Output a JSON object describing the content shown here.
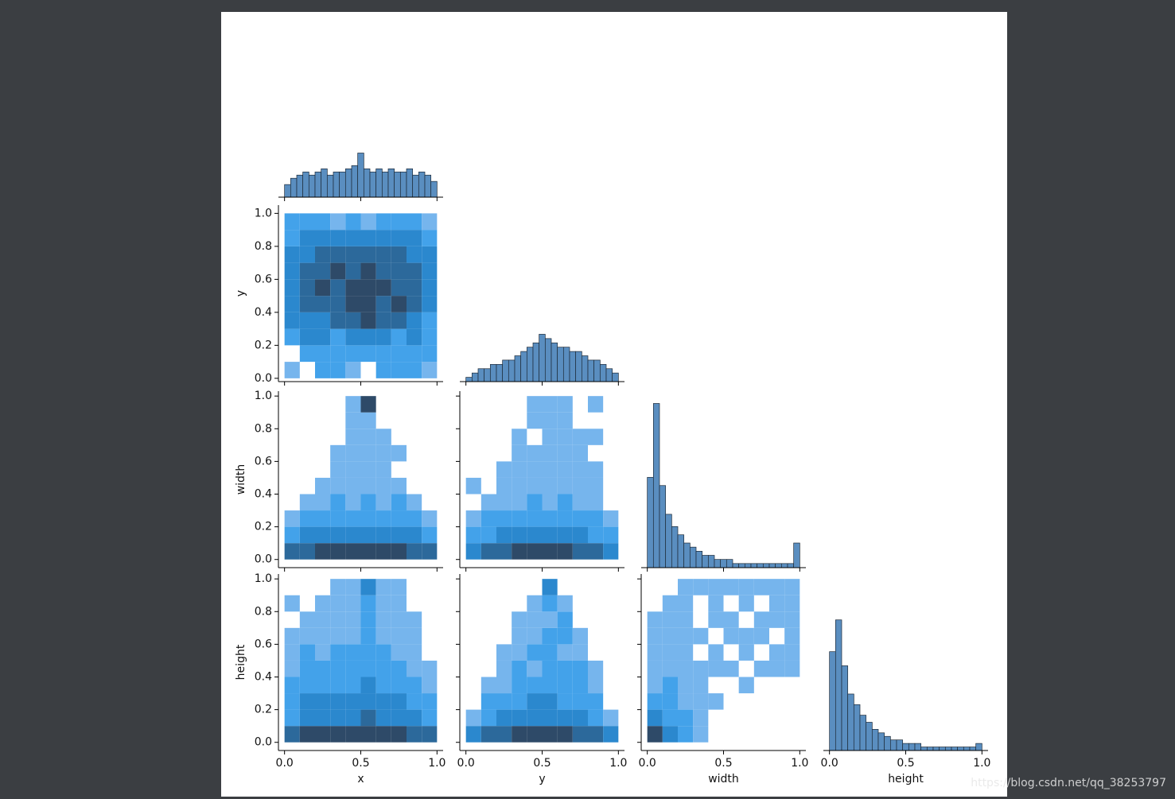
{
  "watermark": "https://blog.csdn.net/qq_38253797",
  "chart_data": [
    {
      "type": "hist",
      "xlim": [
        -0.04,
        1.04
      ],
      "ylim": [
        0,
        56
      ],
      "xticks": [
        {
          "value": 0,
          "label": "0.0"
        },
        0.5,
        {
          "value": 1,
          "label": "1.0"
        }
      ],
      "xtick_labels": false,
      "color": "#5a8ec0",
      "bins": [
        0,
        0.04,
        0.08,
        0.12,
        0.16,
        0.2,
        0.24,
        0.28,
        0.32,
        0.36,
        0.4,
        0.44,
        0.48,
        0.52,
        0.56,
        0.6,
        0.64,
        0.68,
        0.72,
        0.76,
        0.8,
        0.84,
        0.88,
        0.92,
        0.96,
        1
      ],
      "counts": [
        4,
        6,
        7,
        8,
        7,
        8,
        9,
        7,
        8,
        8,
        9,
        10,
        14,
        9,
        8,
        9,
        8,
        9,
        8,
        8,
        9,
        7,
        8,
        7,
        5
      ]
    },
    {
      "type": "hist2d",
      "y_label": "y",
      "xlim": [
        -0.04,
        1.04
      ],
      "ylim": [
        -0.02,
        1.05
      ],
      "xticks": [
        {
          "value": 0,
          "label": "0.0"
        },
        0.5,
        {
          "value": 1,
          "label": "1.0"
        }
      ],
      "yticks": [
        {
          "value": 0,
          "label": "0.0"
        },
        0.2,
        0.4,
        0.6,
        0.8,
        {
          "value": 1,
          "label": "1.0"
        }
      ],
      "xtick_labels": false,
      "ytick_labels": true,
      "colors": [
        "#a8c8f0",
        "#2a98e8",
        "#2e4a68"
      ],
      "bins_x": [
        0,
        0.1,
        0.2,
        0.3,
        0.4,
        0.5,
        0.6,
        0.7,
        0.8,
        0.9,
        1
      ],
      "bins_y": [
        0,
        0.1,
        0.2,
        0.3,
        0.4,
        0.5,
        0.6,
        0.7,
        0.8,
        0.9,
        1
      ],
      "counts": [
        [
          1,
          0,
          2,
          2,
          1,
          0,
          2,
          2,
          2,
          1
        ],
        [
          0,
          2,
          2,
          2,
          2,
          2,
          2,
          2,
          2,
          2
        ],
        [
          2,
          3,
          3,
          2,
          3,
          3,
          3,
          2,
          3,
          2
        ],
        [
          3,
          3,
          3,
          4,
          4,
          5,
          4,
          4,
          3,
          2
        ],
        [
          3,
          4,
          4,
          4,
          5,
          5,
          4,
          5,
          4,
          3
        ],
        [
          3,
          4,
          5,
          4,
          5,
          5,
          5,
          4,
          4,
          3
        ],
        [
          3,
          4,
          4,
          5,
          4,
          5,
          4,
          4,
          4,
          3
        ],
        [
          3,
          3,
          4,
          4,
          4,
          4,
          4,
          4,
          3,
          3
        ],
        [
          2,
          3,
          3,
          3,
          3,
          3,
          3,
          3,
          3,
          2
        ],
        [
          2,
          2,
          2,
          1,
          2,
          1,
          2,
          2,
          2,
          1
        ]
      ]
    },
    {
      "type": "hist",
      "xlim": [
        -0.04,
        1.04
      ],
      "ylim": [
        0,
        41
      ],
      "xticks": [
        {
          "value": 0,
          "label": "0.0"
        },
        0.5,
        {
          "value": 1,
          "label": "1.0"
        }
      ],
      "xtick_labels": false,
      "color": "#5a8ec0",
      "bins": [
        0,
        0.04,
        0.08,
        0.12,
        0.16,
        0.2,
        0.24,
        0.28,
        0.32,
        0.36,
        0.4,
        0.44,
        0.48,
        0.52,
        0.56,
        0.6,
        0.64,
        0.68,
        0.72,
        0.76,
        0.8,
        0.84,
        0.88,
        0.92,
        0.96,
        1
      ],
      "counts": [
        1,
        2,
        3,
        3,
        4,
        4,
        5,
        5,
        6,
        7,
        8,
        9,
        11,
        10,
        9,
        8,
        8,
        7,
        7,
        6,
        5,
        5,
        4,
        3,
        2
      ]
    },
    {
      "type": "hist2d",
      "y_label": "width",
      "xlim": [
        -0.04,
        1.04
      ],
      "ylim": [
        -0.05,
        1.03
      ],
      "xticks": [
        {
          "value": 0,
          "label": "0.0"
        },
        0.5,
        {
          "value": 1,
          "label": "1.0"
        }
      ],
      "yticks": [
        {
          "value": 0,
          "label": "0.0"
        },
        0.2,
        0.4,
        0.6,
        0.8,
        {
          "value": 1,
          "label": "1.0"
        }
      ],
      "xtick_labels": false,
      "ytick_labels": true,
      "colors": [
        "#a8c8f0",
        "#2a98e8",
        "#2e4a68"
      ],
      "bins_x": [
        0,
        0.1,
        0.2,
        0.3,
        0.4,
        0.5,
        0.6,
        0.7,
        0.8,
        0.9,
        1
      ],
      "bins_y": [
        0,
        0.1,
        0.2,
        0.3,
        0.4,
        0.5,
        0.6,
        0.7,
        0.8,
        0.9,
        1
      ],
      "counts": [
        [
          4,
          4,
          5,
          5,
          5,
          5,
          5,
          5,
          4,
          4
        ],
        [
          2,
          3,
          3,
          3,
          3,
          3,
          3,
          3,
          3,
          2
        ],
        [
          1,
          2,
          2,
          2,
          2,
          2,
          2,
          2,
          2,
          1
        ],
        [
          0,
          1,
          1,
          2,
          1,
          2,
          1,
          2,
          1,
          0
        ],
        [
          0,
          0,
          1,
          1,
          1,
          1,
          1,
          1,
          0,
          0
        ],
        [
          0,
          0,
          0,
          1,
          1,
          1,
          1,
          0,
          0,
          0
        ],
        [
          0,
          0,
          0,
          1,
          1,
          1,
          1,
          1,
          0,
          0
        ],
        [
          0,
          0,
          0,
          0,
          1,
          1,
          1,
          0,
          0,
          0
        ],
        [
          0,
          0,
          0,
          0,
          1,
          1,
          0,
          0,
          0,
          0
        ],
        [
          0,
          0,
          0,
          0,
          1,
          5,
          0,
          0,
          0,
          0
        ]
      ]
    },
    {
      "type": "hist2d",
      "xlim": [
        -0.04,
        1.04
      ],
      "ylim": [
        -0.05,
        1.03
      ],
      "xticks": [
        {
          "value": 0,
          "label": "0.0"
        },
        0.5,
        {
          "value": 1,
          "label": "1.0"
        }
      ],
      "yticks": [
        {
          "value": 0,
          "label": "0.0"
        },
        0.2,
        0.4,
        0.6,
        0.8,
        {
          "value": 1,
          "label": "1.0"
        }
      ],
      "xtick_labels": false,
      "ytick_labels": false,
      "colors": [
        "#a8c8f0",
        "#2a98e8",
        "#2e4a68"
      ],
      "bins_x": [
        0,
        0.1,
        0.2,
        0.3,
        0.4,
        0.5,
        0.6,
        0.7,
        0.8,
        0.9,
        1
      ],
      "bins_y": [
        0,
        0.1,
        0.2,
        0.3,
        0.4,
        0.5,
        0.6,
        0.7,
        0.8,
        0.9,
        1
      ],
      "counts": [
        [
          3,
          4,
          4,
          5,
          5,
          5,
          5,
          4,
          4,
          3
        ],
        [
          2,
          2,
          3,
          3,
          3,
          3,
          3,
          3,
          2,
          2
        ],
        [
          1,
          2,
          2,
          2,
          2,
          2,
          2,
          2,
          2,
          1
        ],
        [
          0,
          1,
          1,
          1,
          2,
          1,
          2,
          1,
          1,
          0
        ],
        [
          1,
          0,
          1,
          1,
          1,
          1,
          1,
          1,
          1,
          0
        ],
        [
          0,
          0,
          1,
          1,
          1,
          1,
          1,
          1,
          1,
          0
        ],
        [
          0,
          0,
          0,
          1,
          1,
          1,
          1,
          1,
          0,
          0
        ],
        [
          0,
          0,
          0,
          1,
          0,
          1,
          1,
          1,
          1,
          0
        ],
        [
          0,
          0,
          0,
          0,
          1,
          1,
          1,
          0,
          0,
          0
        ],
        [
          0,
          0,
          0,
          0,
          1,
          1,
          1,
          0,
          1,
          0
        ]
      ]
    },
    {
      "type": "hist",
      "xlim": [
        -0.04,
        1.04
      ],
      "ylim": [
        0,
        43
      ],
      "xticks": [
        {
          "value": 0,
          "label": "0.0"
        },
        0.5,
        {
          "value": 1,
          "label": "1.0"
        }
      ],
      "xtick_labels": false,
      "color": "#5a8ec0",
      "bins": [
        0,
        0.04,
        0.08,
        0.12,
        0.16,
        0.2,
        0.24,
        0.28,
        0.32,
        0.36,
        0.4,
        0.44,
        0.48,
        0.52,
        0.56,
        0.6,
        0.64,
        0.68,
        0.72,
        0.76,
        0.8,
        0.84,
        0.88,
        0.92,
        0.96,
        1
      ],
      "counts": [
        22,
        40,
        20,
        13,
        10,
        8,
        6,
        5,
        4,
        3,
        3,
        2,
        2,
        2,
        1,
        1,
        1,
        1,
        1,
        1,
        1,
        1,
        1,
        1,
        6
      ]
    },
    {
      "type": "hist2d",
      "y_label": "height",
      "x_label": "x",
      "xlim": [
        -0.04,
        1.04
      ],
      "ylim": [
        -0.05,
        1.03
      ],
      "xticks": [
        {
          "value": 0,
          "label": "0.0"
        },
        0.5,
        {
          "value": 1,
          "label": "1.0"
        }
      ],
      "yticks": [
        {
          "value": 0,
          "label": "0.0"
        },
        0.2,
        0.4,
        0.6,
        0.8,
        {
          "value": 1,
          "label": "1.0"
        }
      ],
      "xtick_labels": true,
      "ytick_labels": true,
      "colors": [
        "#a8c8f0",
        "#2a98e8",
        "#2e4a68"
      ],
      "bins_x": [
        0,
        0.1,
        0.2,
        0.3,
        0.4,
        0.5,
        0.6,
        0.7,
        0.8,
        0.9,
        1
      ],
      "bins_y": [
        0,
        0.1,
        0.2,
        0.3,
        0.4,
        0.5,
        0.6,
        0.7,
        0.8,
        0.9,
        1
      ],
      "counts": [
        [
          4,
          5,
          5,
          5,
          5,
          5,
          5,
          5,
          4,
          4
        ],
        [
          2,
          3,
          3,
          3,
          3,
          4,
          3,
          3,
          3,
          2
        ],
        [
          2,
          3,
          3,
          3,
          3,
          3,
          3,
          3,
          2,
          2
        ],
        [
          2,
          2,
          2,
          2,
          2,
          3,
          2,
          2,
          2,
          1
        ],
        [
          1,
          2,
          2,
          2,
          2,
          2,
          2,
          2,
          1,
          1
        ],
        [
          1,
          2,
          1,
          2,
          2,
          2,
          2,
          1,
          1,
          0
        ],
        [
          1,
          1,
          1,
          1,
          1,
          2,
          1,
          1,
          1,
          0
        ],
        [
          0,
          1,
          1,
          1,
          1,
          2,
          1,
          1,
          1,
          0
        ],
        [
          1,
          0,
          1,
          1,
          1,
          2,
          1,
          1,
          0,
          0
        ],
        [
          0,
          0,
          0,
          1,
          1,
          3,
          1,
          1,
          0,
          0
        ]
      ]
    },
    {
      "type": "hist2d",
      "x_label": "y",
      "xlim": [
        -0.04,
        1.04
      ],
      "ylim": [
        -0.05,
        1.03
      ],
      "xticks": [
        {
          "value": 0,
          "label": "0.0"
        },
        0.5,
        {
          "value": 1,
          "label": "1.0"
        }
      ],
      "yticks": [
        {
          "value": 0,
          "label": "0.0"
        },
        0.2,
        0.4,
        0.6,
        0.8,
        {
          "value": 1,
          "label": "1.0"
        }
      ],
      "xtick_labels": true,
      "ytick_labels": false,
      "colors": [
        "#a8c8f0",
        "#2a98e8",
        "#2e4a68"
      ],
      "bins_x": [
        0,
        0.1,
        0.2,
        0.3,
        0.4,
        0.5,
        0.6,
        0.7,
        0.8,
        0.9,
        1
      ],
      "bins_y": [
        0,
        0.1,
        0.2,
        0.3,
        0.4,
        0.5,
        0.6,
        0.7,
        0.8,
        0.9,
        1
      ],
      "counts": [
        [
          3,
          4,
          4,
          5,
          5,
          5,
          5,
          4,
          4,
          3
        ],
        [
          1,
          2,
          3,
          3,
          3,
          3,
          3,
          3,
          2,
          1
        ],
        [
          0,
          2,
          2,
          2,
          3,
          3,
          2,
          2,
          2,
          0
        ],
        [
          0,
          1,
          1,
          2,
          2,
          2,
          2,
          2,
          1,
          0
        ],
        [
          0,
          0,
          1,
          2,
          1,
          2,
          2,
          2,
          1,
          0
        ],
        [
          0,
          0,
          1,
          1,
          2,
          2,
          1,
          1,
          0,
          0
        ],
        [
          0,
          0,
          0,
          1,
          1,
          2,
          2,
          1,
          0,
          0
        ],
        [
          0,
          0,
          0,
          1,
          1,
          1,
          2,
          0,
          0,
          0
        ],
        [
          0,
          0,
          0,
          0,
          1,
          2,
          1,
          0,
          0,
          0
        ],
        [
          0,
          0,
          0,
          0,
          0,
          3,
          0,
          0,
          0,
          0
        ]
      ]
    },
    {
      "type": "hist2d",
      "x_label": "width",
      "xlim": [
        -0.04,
        1.04
      ],
      "ylim": [
        -0.05,
        1.03
      ],
      "xticks": [
        {
          "value": 0,
          "label": "0.0"
        },
        0.5,
        {
          "value": 1,
          "label": "1.0"
        }
      ],
      "yticks": [
        {
          "value": 0,
          "label": "0.0"
        },
        0.2,
        0.4,
        0.6,
        0.8,
        {
          "value": 1,
          "label": "1.0"
        }
      ],
      "xtick_labels": true,
      "ytick_labels": false,
      "colors": [
        "#a8c8f0",
        "#2a98e8",
        "#2e4a68"
      ],
      "bins_x": [
        0,
        0.1,
        0.2,
        0.3,
        0.4,
        0.5,
        0.6,
        0.7,
        0.8,
        0.9,
        1
      ],
      "bins_y": [
        0,
        0.1,
        0.2,
        0.3,
        0.4,
        0.5,
        0.6,
        0.7,
        0.8,
        0.9,
        1
      ],
      "counts": [
        [
          5,
          3,
          2,
          1,
          0,
          0,
          0,
          0,
          0,
          0
        ],
        [
          3,
          2,
          2,
          1,
          0,
          0,
          0,
          0,
          0,
          0
        ],
        [
          2,
          2,
          1,
          1,
          1,
          0,
          0,
          0,
          0,
          0
        ],
        [
          1,
          2,
          1,
          1,
          0,
          0,
          1,
          0,
          0,
          0
        ],
        [
          1,
          1,
          1,
          1,
          1,
          1,
          0,
          1,
          1,
          1
        ],
        [
          1,
          1,
          1,
          0,
          1,
          0,
          1,
          0,
          1,
          1
        ],
        [
          1,
          1,
          1,
          1,
          0,
          1,
          1,
          1,
          0,
          1
        ],
        [
          1,
          1,
          1,
          0,
          1,
          1,
          0,
          1,
          1,
          1
        ],
        [
          0,
          1,
          1,
          0,
          1,
          0,
          1,
          0,
          1,
          1
        ],
        [
          0,
          0,
          1,
          1,
          1,
          1,
          1,
          1,
          1,
          1
        ]
      ]
    },
    {
      "type": "hist",
      "x_label": "height",
      "xlim": [
        -0.04,
        1.04
      ],
      "ylim": [
        0,
        50
      ],
      "xticks": [
        {
          "value": 0,
          "label": "0.0"
        },
        0.5,
        {
          "value": 1,
          "label": "1.0"
        }
      ],
      "xtick_labels": true,
      "color": "#5a8ec0",
      "bins": [
        0,
        0.04,
        0.08,
        0.12,
        0.16,
        0.2,
        0.24,
        0.28,
        0.32,
        0.36,
        0.4,
        0.44,
        0.48,
        0.52,
        0.56,
        0.6,
        0.64,
        0.68,
        0.72,
        0.76,
        0.8,
        0.84,
        0.88,
        0.92,
        0.96,
        1
      ],
      "counts": [
        28,
        37,
        24,
        16,
        13,
        10,
        8,
        6,
        5,
        4,
        3,
        3,
        2,
        2,
        2,
        1,
        1,
        1,
        1,
        1,
        1,
        1,
        1,
        1,
        2
      ]
    }
  ]
}
